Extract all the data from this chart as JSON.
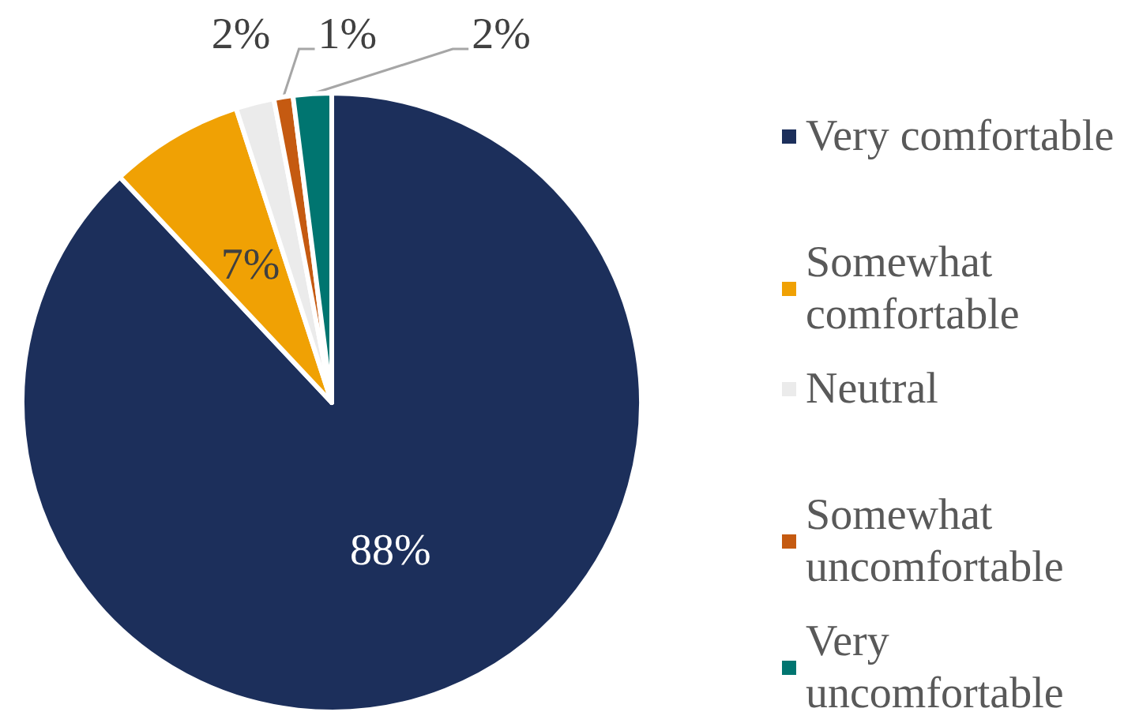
{
  "chart_data": {
    "type": "pie",
    "categories": [
      "Very comfortable",
      "Somewhat comfortable",
      "Neutral",
      "Somewhat uncomfortable",
      "Very uncomfortable"
    ],
    "values": [
      88,
      7,
      2,
      1,
      2
    ],
    "colors": [
      "#1c2f5b",
      "#f0a104",
      "#ebebeb",
      "#c55a11",
      "#007570"
    ],
    "value_labels": [
      "88%",
      "7%",
      "2%",
      "1%",
      "2%"
    ],
    "legend": "right"
  }
}
